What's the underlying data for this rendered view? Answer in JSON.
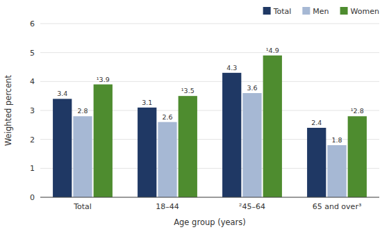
{
  "chart_data": {
    "type": "bar",
    "categories": [
      "Total",
      "18–44",
      "²45–64",
      "65 and over³"
    ],
    "series": [
      {
        "name": "Total",
        "color": "#1f3864",
        "values": [
          3.4,
          3.1,
          4.3,
          2.4
        ]
      },
      {
        "name": "Men",
        "color": "#a6b8d4",
        "values": [
          2.8,
          2.6,
          3.6,
          1.8
        ]
      },
      {
        "name": "Women",
        "color": "#4e8c2f",
        "values": [
          3.9,
          3.5,
          4.9,
          2.8
        ],
        "value_labels": [
          "¹3.9",
          "¹3.5",
          "¹4.9",
          "¹2.8"
        ]
      }
    ],
    "xlabel": "Age group (years)",
    "ylabel": "Weighted percent",
    "ylim": [
      0,
      6
    ],
    "yticks": [
      0,
      1,
      2,
      3,
      4,
      5,
      6
    ],
    "grid": true,
    "legend": "top-right",
    "data_labels": true
  }
}
